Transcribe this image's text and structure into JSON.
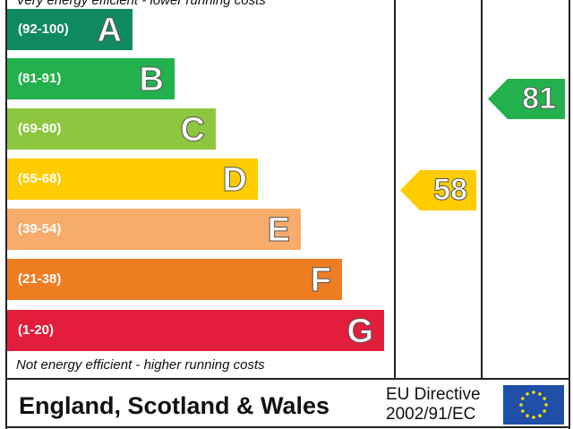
{
  "chart_data": {
    "type": "bar",
    "top_note": "Very energy efficient - lower running costs",
    "bottom_note": "Not energy efficient - higher running costs",
    "bands": [
      {
        "range": "(92-100)",
        "letter": "A",
        "color": "#0f8a5f"
      },
      {
        "range": "(81-91)",
        "letter": "B",
        "color": "#22b14c"
      },
      {
        "range": "(69-80)",
        "letter": "C",
        "color": "#8dc63f"
      },
      {
        "range": "(55-68)",
        "letter": "D",
        "color": "#ffcc00"
      },
      {
        "range": "(39-54)",
        "letter": "E",
        "color": "#f7ac6b"
      },
      {
        "range": "(21-38)",
        "letter": "F",
        "color": "#ef7d22"
      },
      {
        "range": "(1-20)",
        "letter": "G",
        "color": "#e31d3c"
      }
    ],
    "current": {
      "value": 58,
      "band": "D",
      "color": "#ffcc00"
    },
    "potential": {
      "value": 81,
      "band": "B",
      "color": "#22b14c"
    }
  },
  "footer": {
    "region": "England, Scotland & Wales",
    "directive_line1": "EU Directive",
    "directive_line2": "2002/91/EC",
    "flag": "eu-flag-icon"
  }
}
